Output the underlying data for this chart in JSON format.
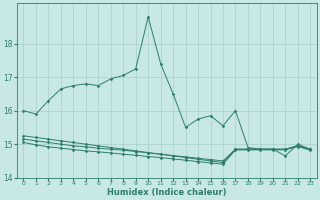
{
  "x": [
    0,
    1,
    2,
    3,
    4,
    5,
    6,
    7,
    8,
    9,
    10,
    11,
    12,
    13,
    14,
    15,
    16,
    17,
    18,
    19,
    20,
    21,
    22,
    23
  ],
  "line1": [
    16.0,
    15.9,
    16.3,
    16.65,
    16.75,
    16.8,
    16.75,
    16.95,
    17.05,
    17.25,
    18.8,
    17.4,
    16.5,
    15.5,
    15.75,
    15.85,
    15.55,
    16.0,
    14.9,
    14.85,
    14.85,
    14.65,
    15.0,
    14.85
  ],
  "line2": [
    15.25,
    15.2,
    15.15,
    15.1,
    15.05,
    15.0,
    14.95,
    14.9,
    14.85,
    14.8,
    14.75,
    14.7,
    14.65,
    14.6,
    14.55,
    14.5,
    14.45,
    14.85,
    14.85,
    14.85,
    14.85,
    14.85,
    14.95,
    14.85
  ],
  "line3": [
    15.15,
    15.1,
    15.05,
    15.0,
    14.95,
    14.92,
    14.88,
    14.85,
    14.82,
    14.78,
    14.74,
    14.7,
    14.66,
    14.62,
    14.58,
    14.54,
    14.5,
    14.85,
    14.85,
    14.85,
    14.85,
    14.85,
    14.95,
    14.85
  ],
  "line4": [
    15.05,
    14.98,
    14.92,
    14.88,
    14.84,
    14.8,
    14.77,
    14.74,
    14.7,
    14.67,
    14.63,
    14.6,
    14.56,
    14.52,
    14.48,
    14.44,
    14.4,
    14.83,
    14.83,
    14.83,
    14.83,
    14.83,
    14.93,
    14.82
  ],
  "line_color": "#2e7d6e",
  "background_color": "#c8e8e8",
  "grid_color": "#a8cccc",
  "ylim": [
    14.0,
    19.2
  ],
  "yticks": [
    14,
    15,
    16,
    17,
    18
  ],
  "xlabel": "Humidex (Indice chaleur)"
}
